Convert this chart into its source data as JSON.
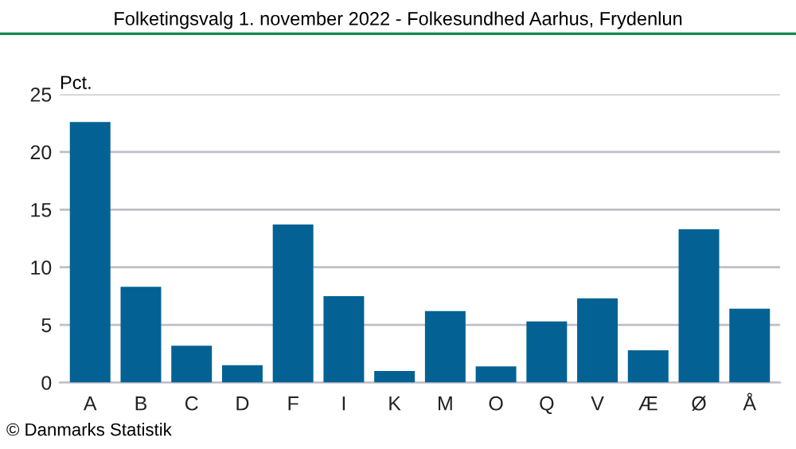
{
  "chart_data": {
    "type": "bar",
    "title": "Folketingsvalg 1. november 2022 - Folkesundhed Aarhus, Frydenlun",
    "ylabel": "Pct.",
    "categories": [
      "A",
      "B",
      "C",
      "D",
      "F",
      "I",
      "K",
      "M",
      "O",
      "Q",
      "V",
      "Æ",
      "Ø",
      "Å"
    ],
    "values": [
      22.6,
      8.3,
      3.2,
      1.5,
      13.7,
      7.5,
      1.0,
      6.2,
      1.4,
      5.3,
      7.3,
      2.8,
      13.3,
      6.4
    ],
    "color": "#036293",
    "ylim": [
      0,
      25
    ],
    "yticks": [
      0,
      5,
      10,
      15,
      20,
      25
    ],
    "grid": "y",
    "annotations": [
      "© Danmarks Statistik"
    ]
  }
}
